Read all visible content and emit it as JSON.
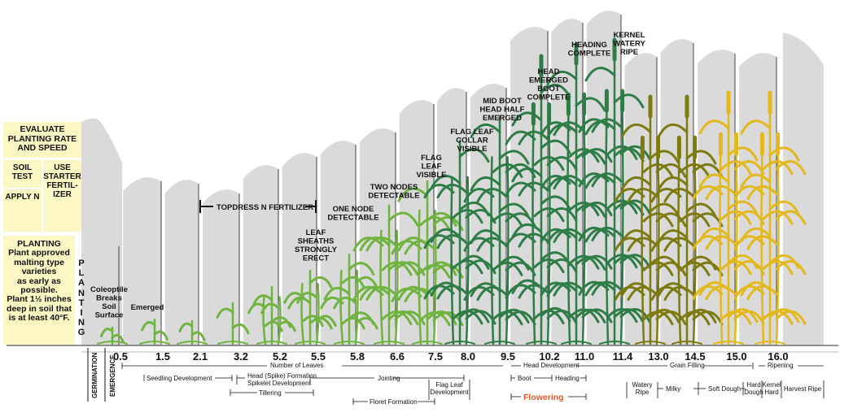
{
  "left_panel": {
    "evaluate": [
      "EVALUATE",
      "PLANTING RATE",
      "AND SPEED"
    ],
    "soil_test": [
      "SOIL",
      "TEST"
    ],
    "use_starter": [
      "USE",
      "STARTER",
      "FERTIL-",
      "IZER"
    ],
    "apply_n": "APPLY N",
    "planting_title": "PLANTING",
    "planting_text": [
      "Plant approved",
      "malting type",
      "varieties",
      "as early as",
      "possible.",
      "Plant 1½ inches",
      "deep in soil that",
      "is at least 40°F."
    ],
    "planting_vertical": "PLANTING"
  },
  "stage_labels": {
    "coleoptile": [
      "Coleoptile",
      "Breaks",
      "Soil",
      "Surface"
    ],
    "emerged": [
      "Emerged"
    ],
    "topdress": "TOPDRESS N FERTILIZER",
    "leaf_sheaths": [
      "LEAF",
      "SHEATHS",
      "STRONGLY",
      "ERECT"
    ],
    "one_node": [
      "ONE NODE",
      "DETECTABLE"
    ],
    "two_nodes": [
      "TWO NODES",
      "DETECTABLE"
    ],
    "flag_leaf_visible": [
      "FLAG",
      "LEAF",
      "VISIBLE"
    ],
    "flag_leaf_collar": [
      "FLAG LEAF",
      "COLLAR",
      "VISIBLE"
    ],
    "mid_boot": [
      "MID BOOT",
      "HEAD HALF",
      "EMERGED"
    ],
    "head_emerged": [
      "HEAD",
      "EMERGED",
      "BOOT",
      "COMPLETE"
    ],
    "heading_complete": [
      "HEADING",
      "COMPLETE"
    ],
    "kernel_watery": [
      "KERNEL",
      "WATERY",
      "RIPE"
    ]
  },
  "stage_numbers": [
    "0.5",
    "1.5",
    "2.1",
    "3.2",
    "5.2",
    "5.5",
    "5.8",
    "6.6",
    "7.5",
    "8.0",
    "9.5",
    "10.2",
    "11.0",
    "11.4",
    "13.0",
    "14.5",
    "15.0",
    "16.0"
  ],
  "vertical_labels": {
    "germination": "GERMINATION",
    "emergence": "EMERGENCE"
  },
  "phases": {
    "number_of_leaves": "Number of Leaves",
    "seedling": "Seedling Development",
    "head_spike": [
      "Head (Spike) Formation",
      "Spikelet Development"
    ],
    "tillering": "Tillering",
    "jointing": "Jointing",
    "flag_leaf_dev": [
      "Flag Leaf",
      "Development"
    ],
    "floret": "Floret Formation",
    "head_development": "Head Development",
    "boot": "Boot",
    "heading": "Heading",
    "flowering": "Flowering",
    "grain_filling": "Grain Filling",
    "ripening": "Ripening",
    "watery_ripe": [
      "Watery",
      "Ripe"
    ],
    "milky": "Milky",
    "soft_dough": "Soft Dough",
    "hard_dough": [
      "Hard",
      "Dough"
    ],
    "kernel_hard": [
      "Kernel",
      "Hard"
    ],
    "harvest_ripe": "Harvest Ripe"
  },
  "colors": {
    "panel": "#fdf7c3",
    "grey": "#dadadb",
    "flowering": "#e8542a",
    "green_light": "#6fb43f",
    "green_dark": "#2f7d46",
    "olive": "#7d7a10",
    "gold": "#e3b81a"
  }
}
